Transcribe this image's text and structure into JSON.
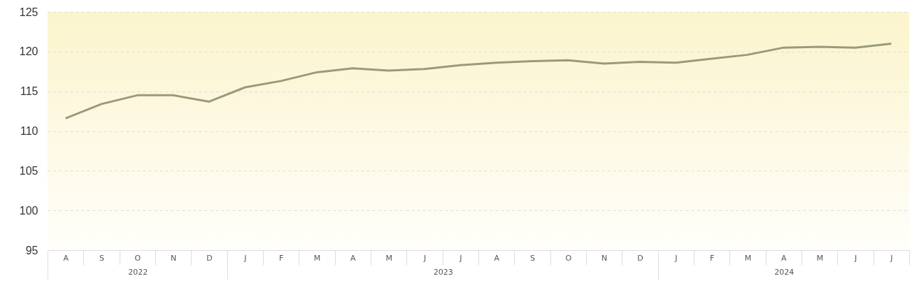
{
  "chart_data": {
    "type": "line",
    "categories": [
      "A",
      "S",
      "O",
      "N",
      "D",
      "J",
      "F",
      "M",
      "A",
      "M",
      "J",
      "J",
      "A",
      "S",
      "O",
      "N",
      "D",
      "J",
      "F",
      "M",
      "A",
      "M",
      "J",
      "J"
    ],
    "values": [
      111.6,
      113.4,
      114.5,
      114.5,
      113.7,
      115.5,
      116.3,
      117.4,
      117.9,
      117.6,
      117.8,
      118.3,
      118.6,
      118.8,
      118.9,
      118.5,
      118.7,
      118.6,
      119.1,
      119.6,
      120.5,
      120.6,
      120.5,
      121.0
    ],
    "color": "#9a9a7a",
    "ylim": [
      95,
      125
    ],
    "yticks": [
      95,
      100,
      105,
      110,
      115,
      120,
      125
    ],
    "grid": "y",
    "marker": "none",
    "legend": false,
    "annotations": [
      "2022",
      "2023",
      "2024"
    ]
  }
}
